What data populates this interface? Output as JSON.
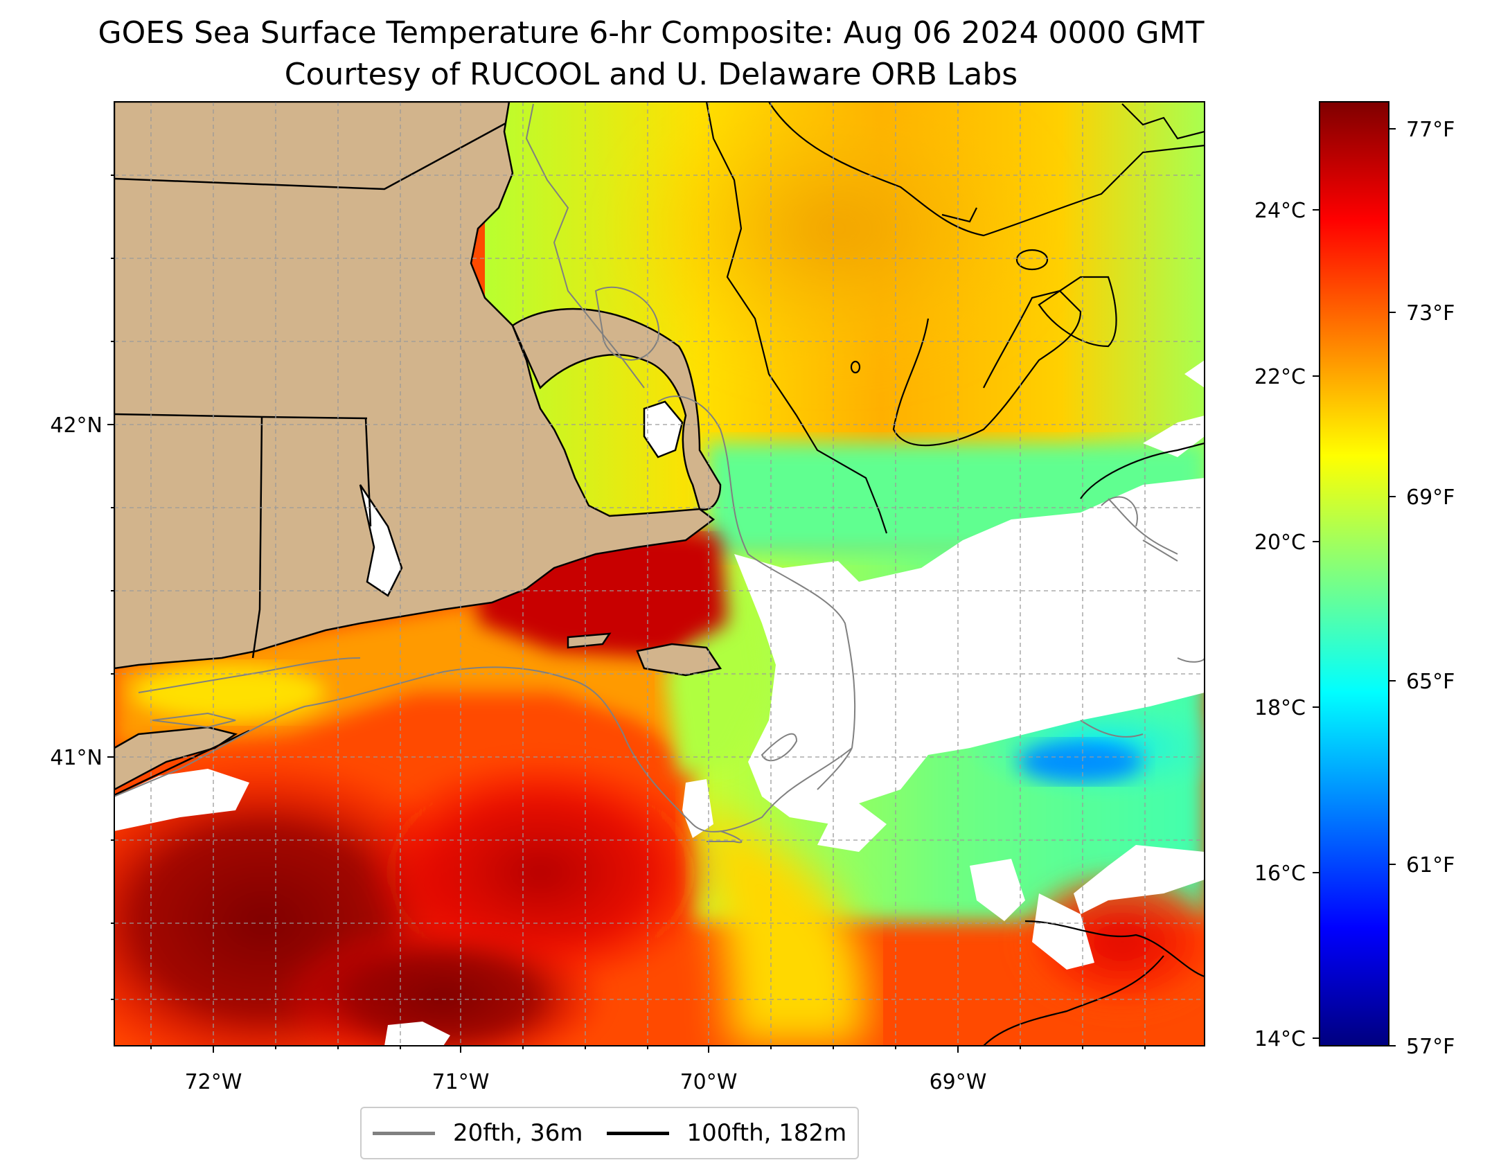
{
  "title": {
    "line1": "GOES Sea Surface Temperature 6-hr Composite: Aug 06 2024 0000 GMT",
    "line2": "Courtesy of RUCOOL and U. Delaware ORB Labs"
  },
  "map": {
    "lon_ticks": [
      "72°W",
      "71°W",
      "70°W",
      "69°W"
    ],
    "lat_ticks": [
      "42°N",
      "41°N"
    ],
    "land_color": "#d2b48c",
    "nodata_color": "#ffffff",
    "gridlines": "dashed gray",
    "feature_icon": "sea-surface-temperature-raster"
  },
  "colorbar": {
    "colormap": "jet",
    "celsius_ticks": [
      "24°C",
      "22°C",
      "20°C",
      "18°C",
      "16°C",
      "14°C"
    ],
    "fahrenheit_ticks": [
      "77°F",
      "73°F",
      "69°F",
      "65°F",
      "61°F",
      "57°F"
    ],
    "stops": [
      "#00007f",
      "#0000ff",
      "#007fff",
      "#00ffff",
      "#7fff7f",
      "#ffff00",
      "#ff7f00",
      "#ff0000",
      "#7f0000"
    ]
  },
  "legend": {
    "items": [
      {
        "label": "20fth, 36m",
        "color": "#808080"
      },
      {
        "label": "100fth, 182m",
        "color": "#000000"
      }
    ]
  }
}
